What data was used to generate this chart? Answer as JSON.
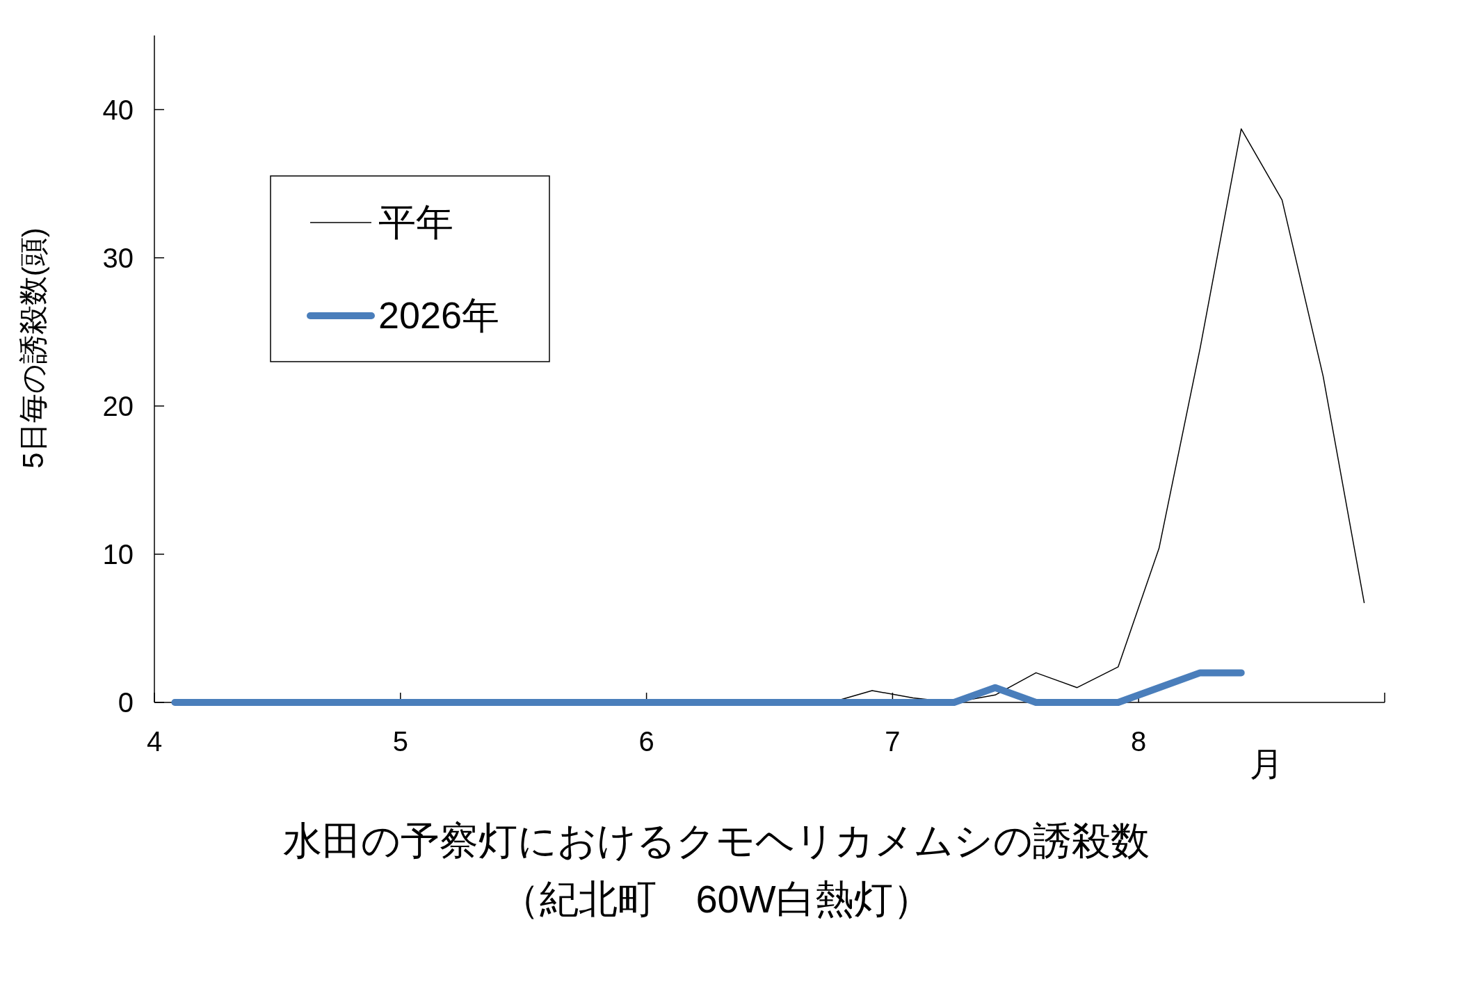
{
  "chart_data": {
    "type": "line",
    "title": "水田の予察灯におけるクモヘリカメムシの誘殺数",
    "subtitle": "（紀北町　60W白熱灯）",
    "xlabel": "月",
    "ylabel": "5日毎の誘殺数(頭)",
    "x": [
      4.083,
      4.25,
      4.417,
      4.583,
      4.75,
      4.917,
      5.083,
      5.25,
      5.417,
      5.583,
      5.75,
      5.917,
      6.083,
      6.25,
      6.417,
      6.583,
      6.75,
      6.917,
      7.083,
      7.25,
      7.417,
      7.583,
      7.75,
      7.917,
      8.083,
      8.25,
      8.417,
      8.583,
      8.75,
      8.917
    ],
    "xlim": [
      4,
      9
    ],
    "xticks": [
      4,
      5,
      6,
      7,
      8,
      {
        "value": 9,
        "label": null
      }
    ],
    "ylim": [
      0,
      45
    ],
    "yticks": [
      0,
      10,
      20,
      30,
      40
    ],
    "legend": "top left",
    "series": [
      {
        "name": "平年",
        "color": "#000000",
        "values": [
          null,
          null,
          null,
          null,
          null,
          null,
          null,
          null,
          null,
          null,
          null,
          null,
          null,
          null,
          null,
          null,
          0,
          0.8,
          0.3,
          0,
          0.5,
          2.0,
          1.0,
          2.4,
          10.4,
          23.9,
          38.7,
          33.9,
          22.0,
          6.7
        ]
      },
      {
        "name": "2026年",
        "color": "#4a7ebb",
        "values": [
          0,
          0,
          0,
          0,
          0,
          0,
          0,
          0,
          0,
          0,
          0,
          0,
          0,
          0,
          0,
          0,
          0,
          0,
          0,
          0,
          1,
          0,
          0,
          0,
          1,
          2,
          2,
          null,
          null,
          null
        ]
      }
    ]
  }
}
